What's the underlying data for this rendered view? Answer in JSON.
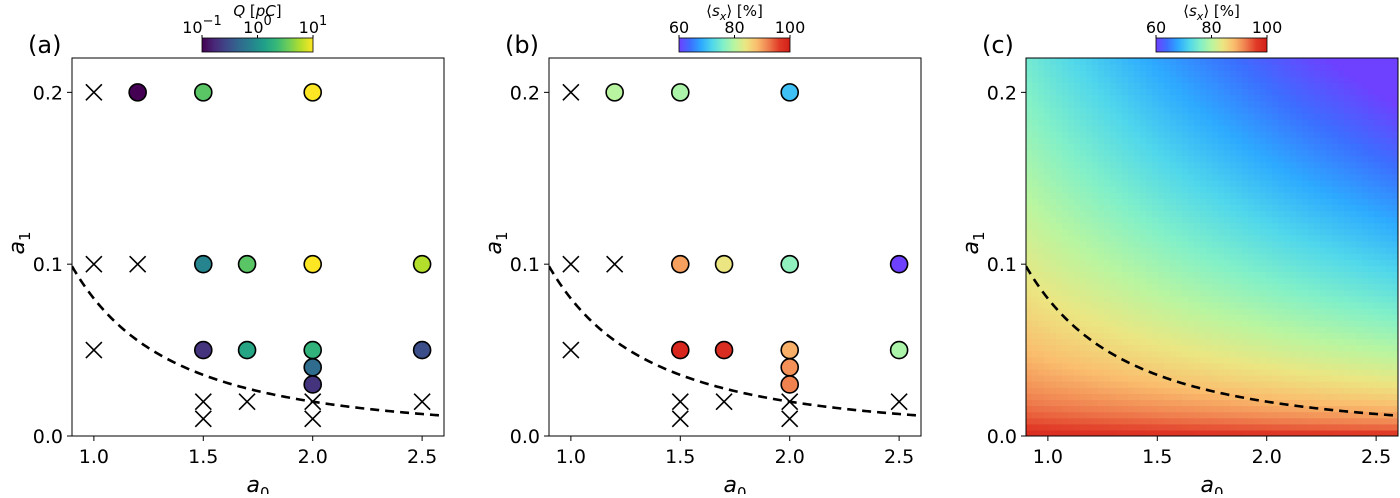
{
  "chart_data": [
    {
      "type": "scatter",
      "panel_label": "(a)",
      "xlabel": "a0",
      "ylabel": "a1",
      "xlim": [
        0.9,
        2.6
      ],
      "ylim": [
        0.0,
        0.22
      ],
      "xticks": [
        1.0,
        1.5,
        2.0,
        2.5
      ],
      "xtick_labels": [
        "1.0",
        "1.5",
        "2.0",
        "2.5"
      ],
      "yticks": [
        0.0,
        0.1,
        0.2
      ],
      "ytick_labels": [
        "0.0",
        "0.1",
        "0.2"
      ],
      "colorbar": {
        "label": "Q [pC]",
        "colormap": "viridis",
        "scale": "log",
        "range": [
          0.1,
          10
        ],
        "tick_values": [
          0.1,
          1,
          10
        ],
        "tick_labels": [
          "10^-1",
          "10^0",
          "10^1"
        ]
      },
      "points": [
        {
          "x": 1.2,
          "y": 0.2,
          "value": 0.1
        },
        {
          "x": 1.5,
          "y": 0.2,
          "value": 3.0
        },
        {
          "x": 2.0,
          "y": 0.2,
          "value": 10.0
        },
        {
          "x": 1.5,
          "y": 0.1,
          "value": 0.8
        },
        {
          "x": 1.7,
          "y": 0.1,
          "value": 3.0
        },
        {
          "x": 2.0,
          "y": 0.1,
          "value": 10.0
        },
        {
          "x": 2.5,
          "y": 0.1,
          "value": 6.0
        },
        {
          "x": 1.5,
          "y": 0.05,
          "value": 0.2
        },
        {
          "x": 1.7,
          "y": 0.05,
          "value": 1.5
        },
        {
          "x": 2.0,
          "y": 0.05,
          "value": 2.0
        },
        {
          "x": 2.0,
          "y": 0.04,
          "value": 0.5
        },
        {
          "x": 2.0,
          "y": 0.03,
          "value": 0.2
        },
        {
          "x": 2.5,
          "y": 0.05,
          "value": 0.3
        }
      ],
      "x_markers": [
        {
          "x": 1.0,
          "y": 0.2
        },
        {
          "x": 1.0,
          "y": 0.1
        },
        {
          "x": 1.2,
          "y": 0.1
        },
        {
          "x": 1.0,
          "y": 0.05
        },
        {
          "x": 1.5,
          "y": 0.02
        },
        {
          "x": 1.5,
          "y": 0.01
        },
        {
          "x": 1.7,
          "y": 0.02
        },
        {
          "x": 2.0,
          "y": 0.02
        },
        {
          "x": 2.0,
          "y": 0.01
        },
        {
          "x": 2.5,
          "y": 0.02
        }
      ],
      "threshold_curve": {
        "style": "dashed",
        "formula": "a1 = 0.08 / a0^2"
      }
    },
    {
      "type": "scatter",
      "panel_label": "(b)",
      "xlabel": "a0",
      "ylabel": "a1",
      "xlim": [
        0.9,
        2.6
      ],
      "ylim": [
        0.0,
        0.22
      ],
      "xticks": [
        1.0,
        1.5,
        2.0,
        2.5
      ],
      "xtick_labels": [
        "1.0",
        "1.5",
        "2.0",
        "2.5"
      ],
      "yticks": [
        0.0,
        0.1,
        0.2
      ],
      "ytick_labels": [
        "0.0",
        "0.1",
        "0.2"
      ],
      "colorbar": {
        "label": "⟨s_x⟩ [%]",
        "colormap": "rainbow",
        "scale": "linear",
        "range": [
          60,
          100
        ],
        "tick_values": [
          60,
          80,
          100
        ],
        "tick_labels": [
          "60",
          "80",
          "100"
        ]
      },
      "points": [
        {
          "x": 1.2,
          "y": 0.2,
          "value": 80
        },
        {
          "x": 1.5,
          "y": 0.2,
          "value": 79
        },
        {
          "x": 2.0,
          "y": 0.2,
          "value": 70
        },
        {
          "x": 1.5,
          "y": 0.1,
          "value": 90
        },
        {
          "x": 1.7,
          "y": 0.1,
          "value": 84
        },
        {
          "x": 2.0,
          "y": 0.1,
          "value": 77
        },
        {
          "x": 2.5,
          "y": 0.1,
          "value": 60
        },
        {
          "x": 1.5,
          "y": 0.05,
          "value": 99
        },
        {
          "x": 1.7,
          "y": 0.05,
          "value": 98
        },
        {
          "x": 2.0,
          "y": 0.05,
          "value": 89
        },
        {
          "x": 2.0,
          "y": 0.04,
          "value": 91
        },
        {
          "x": 2.0,
          "y": 0.03,
          "value": 92
        },
        {
          "x": 2.5,
          "y": 0.05,
          "value": 79
        }
      ],
      "x_markers": [
        {
          "x": 1.0,
          "y": 0.2
        },
        {
          "x": 1.0,
          "y": 0.1
        },
        {
          "x": 1.2,
          "y": 0.1
        },
        {
          "x": 1.0,
          "y": 0.05
        },
        {
          "x": 1.5,
          "y": 0.02
        },
        {
          "x": 1.5,
          "y": 0.01
        },
        {
          "x": 1.7,
          "y": 0.02
        },
        {
          "x": 2.0,
          "y": 0.02
        },
        {
          "x": 2.0,
          "y": 0.01
        },
        {
          "x": 2.5,
          "y": 0.02
        }
      ],
      "threshold_curve": {
        "style": "dashed",
        "formula": "a1 = 0.08 / a0^2"
      }
    },
    {
      "type": "heatmap",
      "panel_label": "(c)",
      "xlabel": "a0",
      "ylabel": "a1",
      "xlim": [
        0.9,
        2.6
      ],
      "ylim": [
        0.0,
        0.22
      ],
      "xticks": [
        1.0,
        1.5,
        2.0,
        2.5
      ],
      "xtick_labels": [
        "1.0",
        "1.5",
        "2.0",
        "2.5"
      ],
      "yticks": [
        0.0,
        0.1,
        0.2
      ],
      "ytick_labels": [
        "0.0",
        "0.1",
        "0.2"
      ],
      "colorbar": {
        "label": "⟨s_x⟩ [%]",
        "colormap": "rainbow",
        "scale": "linear",
        "range": [
          60,
          100
        ],
        "tick_values": [
          60,
          80,
          100
        ],
        "tick_labels": [
          "60",
          "80",
          "100"
        ]
      },
      "field": {
        "formula": "s = 100 - 0.12 * (a0 * a1)^0.5 * 100 * 4.7",
        "clip": [
          60,
          100
        ]
      },
      "threshold_curve": {
        "style": "dashed",
        "formula": "a1 = 0.08 / a0^2"
      }
    }
  ]
}
